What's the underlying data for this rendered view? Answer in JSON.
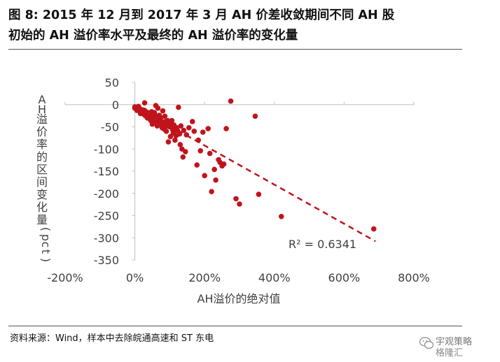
{
  "figure": {
    "title_line1": "图 8: 2015 年 12 月到 2017 年 3 月 AH 价差收敛期间不同 AH 股",
    "title_line2": "初始的 AH 溢价率水平及最终的 AH 溢价率的变化量",
    "source": "资料来源：Wind，样本中去除皖通高速和 ST 东电",
    "watermark_line1": "宇观策略",
    "watermark_line2": "格隆汇"
  },
  "colors": {
    "points": "#c0141c",
    "trendline": "#c0141c",
    "axis": "#bfbfbf",
    "text": "#404040"
  },
  "chart_data": {
    "type": "scatter",
    "xlabel": "AH溢价的绝对值",
    "ylabel": "AH溢价率的区间变化量（pct）",
    "xlim": [
      -200,
      800
    ],
    "ylim": [
      -350,
      50
    ],
    "x_ticks": [
      -200,
      0,
      200,
      400,
      600,
      800
    ],
    "x_tick_labels": [
      "-200%",
      "0%",
      "200%",
      "400%",
      "600%",
      "800%"
    ],
    "y_ticks": [
      50,
      0,
      -50,
      -100,
      -150,
      -200,
      -250,
      -300,
      -350
    ],
    "y_tick_labels": [
      "50",
      "0",
      "-50",
      "-100",
      "-150",
      "-200",
      "-250",
      "-300",
      "-350"
    ],
    "grid": false,
    "annotation": "R² = 0.6341",
    "trendline": {
      "x": [
        0,
        690
      ],
      "y": [
        -4,
        -308
      ]
    },
    "points": [
      [
        0,
        -8
      ],
      [
        4,
        -10
      ],
      [
        6,
        -8
      ],
      [
        8,
        -9
      ],
      [
        10,
        -11
      ],
      [
        12,
        -7
      ],
      [
        14,
        -9
      ],
      [
        16,
        -12
      ],
      [
        18,
        -14
      ],
      [
        20,
        -18
      ],
      [
        22,
        -16
      ],
      [
        24,
        -12
      ],
      [
        26,
        -22
      ],
      [
        28,
        -13
      ],
      [
        30,
        -25
      ],
      [
        32,
        -20
      ],
      [
        34,
        -17
      ],
      [
        36,
        -30
      ],
      [
        38,
        -24
      ],
      [
        40,
        -20
      ],
      [
        42,
        -32
      ],
      [
        44,
        -28
      ],
      [
        46,
        -36
      ],
      [
        48,
        -22
      ],
      [
        50,
        -44
      ],
      [
        52,
        -30
      ],
      [
        54,
        -38
      ],
      [
        56,
        -18
      ],
      [
        58,
        -34
      ],
      [
        60,
        -40
      ],
      [
        62,
        -26
      ],
      [
        64,
        -48
      ],
      [
        66,
        -8
      ],
      [
        68,
        -36
      ],
      [
        70,
        -42
      ],
      [
        72,
        -32
      ],
      [
        74,
        -30
      ],
      [
        76,
        -46
      ],
      [
        78,
        -52
      ],
      [
        80,
        -14
      ],
      [
        82,
        -40
      ],
      [
        84,
        -55
      ],
      [
        86,
        -38
      ],
      [
        88,
        -44
      ],
      [
        90,
        -60
      ],
      [
        92,
        -48
      ],
      [
        94,
        -36
      ],
      [
        96,
        -84
      ],
      [
        100,
        -50
      ],
      [
        102,
        -72
      ],
      [
        105,
        -42
      ],
      [
        108,
        -56
      ],
      [
        110,
        -64
      ],
      [
        112,
        -46
      ],
      [
        115,
        -80
      ],
      [
        118,
        -70
      ],
      [
        120,
        -52
      ],
      [
        122,
        -58
      ],
      [
        125,
        -6
      ],
      [
        128,
        -66
      ],
      [
        130,
        -90
      ],
      [
        132,
        -48
      ],
      [
        135,
        -100
      ],
      [
        138,
        -118
      ],
      [
        140,
        -58
      ],
      [
        145,
        -106
      ],
      [
        148,
        -68
      ],
      [
        155,
        -52
      ],
      [
        165,
        -38
      ],
      [
        170,
        -60
      ],
      [
        178,
        -136
      ],
      [
        182,
        -80
      ],
      [
        188,
        -104
      ],
      [
        195,
        -62
      ],
      [
        200,
        -160
      ],
      [
        210,
        -54
      ],
      [
        215,
        -110
      ],
      [
        220,
        -196
      ],
      [
        228,
        -146
      ],
      [
        232,
        -170
      ],
      [
        240,
        -124
      ],
      [
        244,
        -130
      ],
      [
        250,
        -138
      ],
      [
        255,
        -134
      ],
      [
        262,
        -54
      ],
      [
        275,
        8
      ],
      [
        290,
        -212
      ],
      [
        300,
        -224
      ],
      [
        345,
        -26
      ],
      [
        355,
        -202
      ],
      [
        420,
        -252
      ],
      [
        685,
        -280
      ],
      [
        0,
        -5
      ],
      [
        6,
        -13
      ],
      [
        10,
        -4
      ],
      [
        16,
        -20
      ],
      [
        28,
        4
      ],
      [
        38,
        -18
      ],
      [
        48,
        -16
      ],
      [
        60,
        -2
      ],
      [
        70,
        -24
      ],
      [
        86,
        -26
      ],
      [
        95,
        -45
      ],
      [
        106,
        -36
      ],
      [
        118,
        -58
      ]
    ]
  }
}
